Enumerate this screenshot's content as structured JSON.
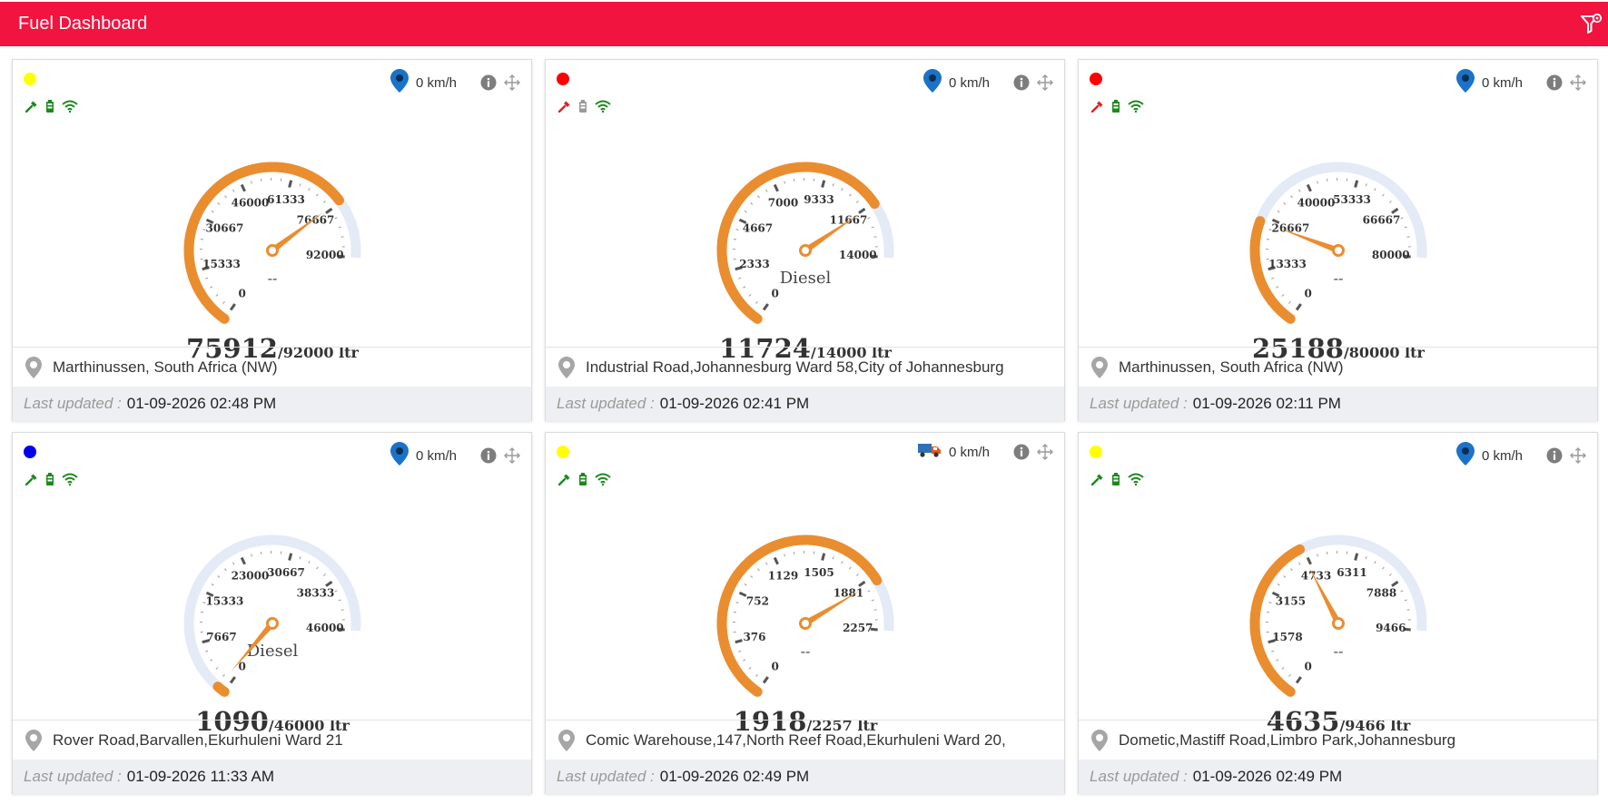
{
  "header": {
    "title": "Fuel Dashboard",
    "filter_icon": "filter-settings-icon"
  },
  "colors": {
    "header": "#f0143f",
    "gauge_fill": "#ea8d2f",
    "gauge_track": "#e4eaf6",
    "icon_green": "#1b8a1b",
    "icon_red": "#e02020",
    "icon_gray": "#9a9a9a",
    "pin_blue": "#1a73c8"
  },
  "labels": {
    "last_updated": "Last updated :"
  },
  "cards": [
    {
      "dot": "#ffff00",
      "ignition": "green",
      "battery": "green",
      "speed": "0 km/h",
      "vehicle_icon": "location-pin-icon",
      "max": 92000,
      "value": 75912,
      "center_label": "--",
      "ticks": [
        "0",
        "15333",
        "30667",
        "46000",
        "61333",
        "76667",
        "92000"
      ],
      "reading": "75912",
      "capacity": "/92000 ltr",
      "location": "Marthinussen, South Africa (NW)",
      "updated": "01-09-2026 02:48 PM"
    },
    {
      "dot": "#ff0000",
      "ignition": "red",
      "battery": "gray",
      "speed": "0 km/h",
      "vehicle_icon": "location-pin-icon",
      "max": 14000,
      "value": 11724,
      "center_label": "Diesel",
      "ticks": [
        "0",
        "2333",
        "4667",
        "7000",
        "9333",
        "11667",
        "14000"
      ],
      "reading": "11724",
      "capacity": "/14000 ltr",
      "location": "Industrial Road,Johannesburg Ward 58,City of Johannesburg",
      "updated": "01-09-2026 02:41 PM"
    },
    {
      "dot": "#ff0000",
      "ignition": "red",
      "battery": "green",
      "speed": "0 km/h",
      "vehicle_icon": "location-pin-icon",
      "max": 80000,
      "value": 25188,
      "center_label": "--",
      "ticks": [
        "0",
        "13333",
        "26667",
        "40000",
        "53333",
        "66667",
        "80000"
      ],
      "reading": "25188",
      "capacity": "/80000 ltr",
      "location": "Marthinussen, South Africa (NW)",
      "updated": "01-09-2026 02:11 PM"
    },
    {
      "dot": "#0000ee",
      "ignition": "green",
      "battery": "green",
      "speed": "0 km/h",
      "vehicle_icon": "location-pin-icon",
      "max": 46000,
      "value": 1090,
      "center_label": "Diesel",
      "ticks": [
        "0",
        "7667",
        "15333",
        "23000",
        "30667",
        "38333",
        "46000"
      ],
      "reading": "1090",
      "capacity": "/46000 ltr",
      "location": "Rover Road,Barvallen,Ekurhuleni Ward 21",
      "updated": "01-09-2026 11:33 AM"
    },
    {
      "dot": "#ffff00",
      "ignition": "green",
      "battery": "green",
      "speed": "0 km/h",
      "vehicle_icon": "truck-icon",
      "max": 2257,
      "value": 1918,
      "center_label": "--",
      "ticks": [
        "0",
        "376",
        "752",
        "1129",
        "1505",
        "1881",
        "2257"
      ],
      "reading": "1918",
      "capacity": "/2257 ltr",
      "location": "Comic Warehouse,147,North Reef Road,Ekurhuleni Ward 20,",
      "updated": "01-09-2026 02:49 PM"
    },
    {
      "dot": "#ffff00",
      "ignition": "green",
      "battery": "green",
      "speed": "0 km/h",
      "vehicle_icon": "location-pin-icon",
      "max": 9466,
      "value": 4635,
      "center_label": "--",
      "ticks": [
        "0",
        "1578",
        "3155",
        "4733",
        "6311",
        "7888",
        "9466"
      ],
      "reading": "4635",
      "capacity": "/9466 ltr",
      "location": "Dometic,Mastiff Road,Limbro Park,Johannesburg",
      "updated": "01-09-2026 02:49 PM"
    }
  ]
}
